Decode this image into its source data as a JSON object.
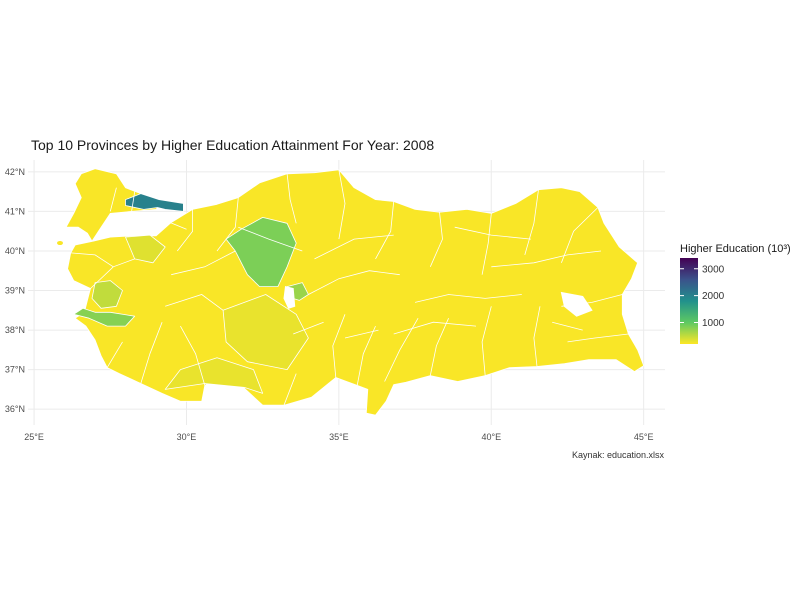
{
  "title": "Top 10 Provinces by Higher Education Attainment For Year: 2008",
  "caption": "Kaynak: education.xlsx",
  "colors": {
    "low": "#fde725",
    "mid": "#21918c",
    "high": "#440154",
    "province_border": "#ffffff",
    "grid": "#ebebeb",
    "background": "#ffffff"
  },
  "chart_data": {
    "type": "choropleth",
    "title": "Top 10 Provinces by Higher Education Attainment For Year: 2008",
    "caption": "Kaynak: education.xlsx",
    "xlabel": "",
    "ylabel": "",
    "x_ticks": [
      "25°E",
      "30°E",
      "35°E",
      "40°E",
      "45°E"
    ],
    "x_tick_values": [
      25,
      30,
      35,
      40,
      45
    ],
    "y_ticks": [
      "36°N",
      "37°N",
      "38°N",
      "39°N",
      "40°N",
      "41°N",
      "42°N"
    ],
    "y_tick_values": [
      36,
      37,
      38,
      39,
      40,
      41,
      42
    ],
    "xlim": [
      24.8,
      45.7
    ],
    "ylim": [
      35.6,
      42.3
    ],
    "grid": true,
    "legend": {
      "title": "Higher Education (10³)",
      "position": "right",
      "ticks": [
        "1000",
        "2000",
        "3000"
      ],
      "tick_values": [
        1000,
        2000,
        3000
      ],
      "range": [
        200,
        3400
      ]
    },
    "highlighted_regions": [
      {
        "name": "Istanbul",
        "level": 2000
      },
      {
        "name": "Ankara",
        "level": 850
      },
      {
        "name": "Izmir",
        "level": 800
      },
      {
        "name": "Bursa",
        "level": 350
      },
      {
        "name": "Manisa",
        "level": 500
      },
      {
        "name": "Kırşehir",
        "level": 700
      },
      {
        "name": "Konya",
        "level": 300
      },
      {
        "name": "Antalya",
        "level": 300
      }
    ]
  }
}
